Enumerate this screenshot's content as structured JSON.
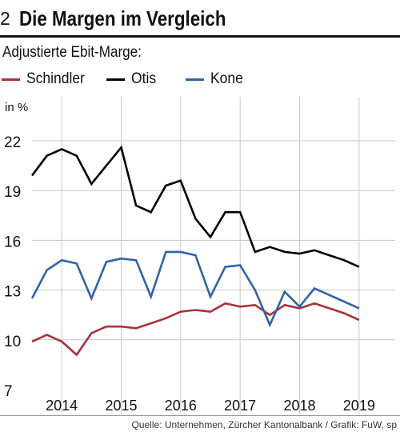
{
  "figure": {
    "number": "2",
    "title": "Die Margen im Vergleich",
    "subtitle": "Adjustierte Ebit-Marge:",
    "unit": "in %",
    "source": "Quelle: Unternehmen, Zürcher Kantonalbank / Grafik: FuW, sp"
  },
  "colors": {
    "schindler": "#a8323c",
    "otis": "#000000",
    "kone": "#2f63a8",
    "grid": "#c8c8c8"
  },
  "chart_data": {
    "type": "line",
    "title": "Die Margen im Vergleich",
    "subtitle": "Adjustierte Ebit-Marge:",
    "ylabel": "in %",
    "xlabel": "",
    "ylim": [
      7,
      22
    ],
    "yticks": [
      7,
      10,
      13,
      16,
      19,
      22
    ],
    "xlim": [
      2013.5,
      2019.5
    ],
    "xticks": [
      2014,
      2015,
      2016,
      2017,
      2018,
      2019
    ],
    "x": [
      2013.5,
      2013.75,
      2014.0,
      2014.25,
      2014.5,
      2014.75,
      2015.0,
      2015.25,
      2015.5,
      2015.75,
      2016.0,
      2016.25,
      2016.5,
      2016.75,
      2017.0,
      2017.25,
      2017.5,
      2017.75,
      2018.0,
      2018.25,
      2018.5,
      2018.75,
      2019.0
    ],
    "grid": true,
    "legend_position": "top",
    "series": [
      {
        "name": "Schindler",
        "color_key": "schindler",
        "values": [
          9.9,
          10.3,
          9.9,
          9.1,
          10.4,
          10.8,
          10.8,
          10.7,
          11.0,
          11.3,
          11.7,
          11.8,
          11.7,
          12.2,
          12.0,
          12.1,
          11.5,
          12.1,
          11.9,
          12.2,
          11.9,
          11.6,
          11.2
        ]
      },
      {
        "name": "Otis",
        "color_key": "otis",
        "values": [
          19.9,
          21.1,
          21.5,
          21.1,
          19.4,
          20.5,
          21.6,
          18.1,
          17.7,
          19.3,
          19.6,
          17.3,
          16.2,
          17.7,
          17.7,
          15.3,
          15.6,
          15.3,
          15.2,
          15.4,
          15.1,
          14.8,
          14.4
        ]
      },
      {
        "name": "Kone",
        "color_key": "kone",
        "values": [
          12.5,
          14.2,
          14.8,
          14.6,
          12.5,
          14.7,
          14.9,
          14.8,
          12.6,
          15.3,
          15.3,
          15.1,
          12.6,
          14.4,
          14.5,
          13.0,
          10.9,
          12.9,
          12.0,
          13.1,
          12.7,
          12.3,
          11.9
        ]
      }
    ]
  }
}
